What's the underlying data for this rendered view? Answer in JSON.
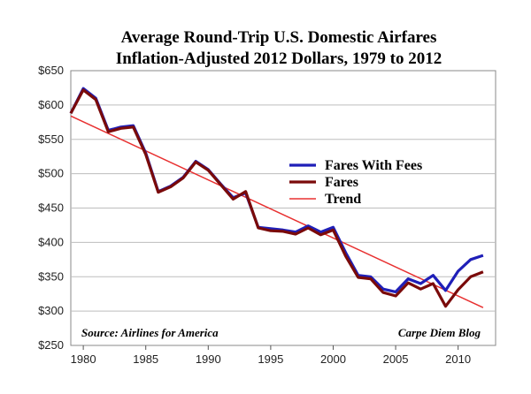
{
  "chart_data": {
    "type": "line",
    "title": "Average Round-Trip U.S. Domestic Airfares",
    "subtitle": "Inflation-Adjusted 2012 Dollars, 1979 to 2012",
    "xlim": [
      1979,
      2013
    ],
    "ylim": [
      250,
      650
    ],
    "x_ticks": [
      1980,
      1985,
      1990,
      1995,
      2000,
      2005,
      2010
    ],
    "y_ticks": [
      250,
      300,
      350,
      400,
      450,
      500,
      550,
      600,
      650
    ],
    "y_tick_labels": [
      "$250",
      "$300",
      "$350",
      "$400",
      "$450",
      "$500",
      "$550",
      "$600",
      "$650"
    ],
    "grid": "horizontal",
    "legend_position": "right",
    "x": [
      1979,
      1980,
      1981,
      1982,
      1983,
      1984,
      1985,
      1986,
      1987,
      1988,
      1989,
      1990,
      1991,
      1992,
      1993,
      1994,
      1995,
      1996,
      1997,
      1998,
      1999,
      2000,
      2001,
      2002,
      2003,
      2004,
      2005,
      2006,
      2007,
      2008,
      2009,
      2010,
      2011,
      2012
    ],
    "series": [
      {
        "name": "Fares With Fees",
        "color": "#1f1fb8",
        "values": [
          588,
          624,
          610,
          563,
          568,
          570,
          530,
          474,
          482,
          495,
          518,
          506,
          485,
          465,
          472,
          422,
          420,
          418,
          415,
          424,
          415,
          422,
          385,
          352,
          350,
          332,
          328,
          347,
          340,
          352,
          330,
          358,
          375,
          381
        ]
      },
      {
        "name": "Fares",
        "color": "#7a0a0a",
        "values": [
          588,
          622,
          608,
          561,
          566,
          568,
          528,
          473,
          481,
          494,
          517,
          505,
          484,
          463,
          474,
          421,
          417,
          416,
          412,
          421,
          411,
          418,
          380,
          349,
          347,
          327,
          322,
          341,
          332,
          340,
          307,
          331,
          350,
          357
        ]
      },
      {
        "name": "Trend",
        "color": "#e83030",
        "x": [
          1979,
          2012
        ],
        "values": [
          584,
          305
        ]
      }
    ],
    "annotations": {
      "source": "Source: Airlines for America",
      "credit": "Carpe Diem Blog"
    }
  }
}
